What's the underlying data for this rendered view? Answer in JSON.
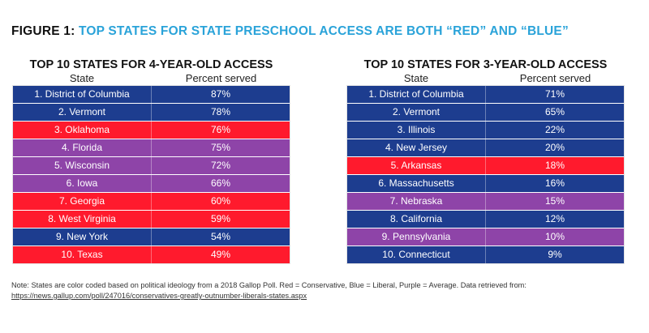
{
  "figure": {
    "label": "FIGURE 1:",
    "title": "TOP STATES FOR STATE PRESCHOOL ACCESS ARE BOTH “RED” AND “BLUE”"
  },
  "colors": {
    "Liberal": "#1d3d8f",
    "Conservative": "#ff1a2d",
    "Average": "#8e44a8"
  },
  "chart_data": [
    {
      "type": "table",
      "title": "TOP 10 STATES FOR 4-YEAR-OLD ACCESS",
      "columns": [
        "State",
        "Percent served"
      ],
      "rows": [
        {
          "state": "1. District of Columbia",
          "percent": "87%",
          "ideology": "Liberal"
        },
        {
          "state": "2. Vermont",
          "percent": "78%",
          "ideology": "Liberal"
        },
        {
          "state": "3. Oklahoma",
          "percent": "76%",
          "ideology": "Conservative"
        },
        {
          "state": "4. Florida",
          "percent": "75%",
          "ideology": "Average"
        },
        {
          "state": "5. Wisconsin",
          "percent": "72%",
          "ideology": "Average"
        },
        {
          "state": "6. Iowa",
          "percent": "66%",
          "ideology": "Average"
        },
        {
          "state": "7. Georgia",
          "percent": "60%",
          "ideology": "Conservative"
        },
        {
          "state": "8. West Virginia",
          "percent": "59%",
          "ideology": "Conservative"
        },
        {
          "state": "9. New York",
          "percent": "54%",
          "ideology": "Liberal"
        },
        {
          "state": "10. Texas",
          "percent": "49%",
          "ideology": "Conservative"
        }
      ]
    },
    {
      "type": "table",
      "title": "TOP 10 STATES FOR 3-YEAR-OLD ACCESS",
      "columns": [
        "State",
        "Percent served"
      ],
      "rows": [
        {
          "state": "1. District of Columbia",
          "percent": "71%",
          "ideology": "Liberal"
        },
        {
          "state": "2. Vermont",
          "percent": "65%",
          "ideology": "Liberal"
        },
        {
          "state": "3. Illinois",
          "percent": "22%",
          "ideology": "Liberal"
        },
        {
          "state": "4. New Jersey",
          "percent": "20%",
          "ideology": "Liberal"
        },
        {
          "state": "5. Arkansas",
          "percent": "18%",
          "ideology": "Conservative"
        },
        {
          "state": "6. Massachusetts",
          "percent": "16%",
          "ideology": "Liberal"
        },
        {
          "state": "7. Nebraska",
          "percent": "15%",
          "ideology": "Average"
        },
        {
          "state": "8. California",
          "percent": "12%",
          "ideology": "Liberal"
        },
        {
          "state": "9. Pennsylvania",
          "percent": "10%",
          "ideology": "Average"
        },
        {
          "state": "10. Connecticut",
          "percent": "9%",
          "ideology": "Liberal"
        }
      ]
    }
  ],
  "note": {
    "text": "Note: States are color coded based on political ideology from a 2018 Gallop Poll. Red = Conservative, Blue = Liberal, Purple = Average. Data retrieved from: ",
    "link": "https://news.gallup.com/poll/247016/conservatives-greatly-outnumber-liberals-states.aspx"
  }
}
